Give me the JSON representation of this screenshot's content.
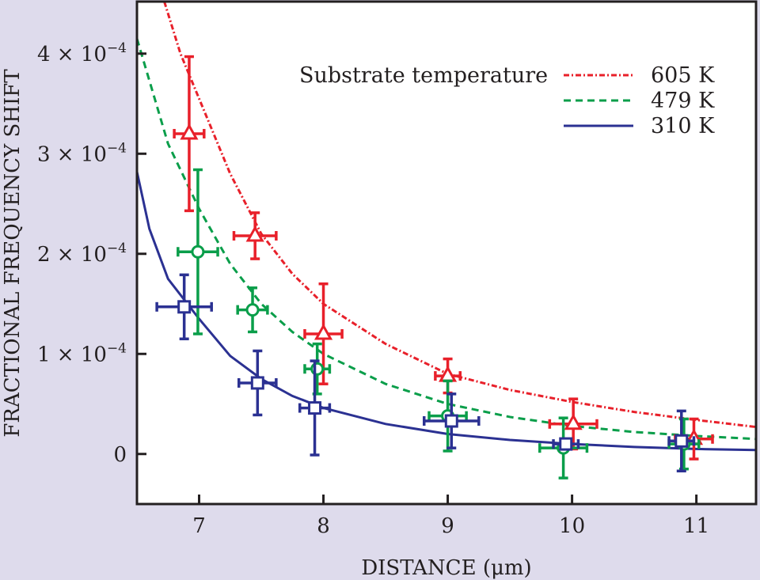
{
  "chart_data": {
    "type": "scatter",
    "title": "",
    "xlabel": "DISTANCE (μm)",
    "ylabel": "FRACTIONAL FREQUENCY SHIFT",
    "xlim": [
      6.5,
      11.48
    ],
    "ylim": [
      -5e-05,
      0.000452
    ],
    "grid": false,
    "x_ticks": [
      7,
      8,
      9,
      10,
      11
    ],
    "x_tick_labels": [
      "7",
      "8",
      "9",
      "10",
      "11"
    ],
    "y_ticks": [
      0,
      0.0001,
      0.0002,
      0.0003,
      0.0004
    ],
    "y_tick_labels": [
      {
        "mantissa": "0",
        "exp": ""
      },
      {
        "mantissa": "1 × 10",
        "exp": "−4"
      },
      {
        "mantissa": "2 × 10",
        "exp": "−4"
      },
      {
        "mantissa": "3 × 10",
        "exp": "−4"
      },
      {
        "mantissa": "4 × 10",
        "exp": "−4"
      }
    ],
    "legend": {
      "title": "Substrate temperature",
      "placement": "top-right"
    },
    "series": [
      {
        "name": "605 K",
        "color": "#e8202a",
        "line_style": "dashdot",
        "marker": "triangle",
        "points": [
          {
            "x": 6.92,
            "y": 0.00032,
            "xerr": 0.12,
            "yerr": 7.7e-05
          },
          {
            "x": 7.45,
            "y": 0.000218,
            "xerr": 0.17,
            "yerr": 2.3e-05
          },
          {
            "x": 8.0,
            "y": 0.00012,
            "xerr": 0.15,
            "yerr": 5e-05
          },
          {
            "x": 9.0,
            "y": 7.8e-05,
            "xerr": 0.1,
            "yerr": 1.7e-05
          },
          {
            "x": 10.01,
            "y": 3e-05,
            "xerr": 0.19,
            "yerr": 2.5e-05
          },
          {
            "x": 10.98,
            "y": 1.5e-05,
            "xerr": 0.15,
            "yerr": 2e-05
          }
        ],
        "curve": [
          [
            6.72,
            0.000452
          ],
          [
            6.85,
            0.0004
          ],
          [
            7.0,
            0.000355
          ],
          [
            7.25,
            0.00028
          ],
          [
            7.5,
            0.00022
          ],
          [
            7.75,
            0.00018
          ],
          [
            8.0,
            0.00015
          ],
          [
            8.5,
            0.00011
          ],
          [
            9.0,
            8e-05
          ],
          [
            9.5,
            6.4e-05
          ],
          [
            10.0,
            5.2e-05
          ],
          [
            10.5,
            4.2e-05
          ],
          [
            11.0,
            3.4e-05
          ],
          [
            11.48,
            2.7e-05
          ]
        ]
      },
      {
        "name": "479 K",
        "color": "#0a9e4a",
        "line_style": "dashed",
        "marker": "circle",
        "points": [
          {
            "x": 6.99,
            "y": 0.000202,
            "xerr": 0.16,
            "yerr": 8.2e-05
          },
          {
            "x": 7.43,
            "y": 0.000144,
            "xerr": 0.12,
            "yerr": 2.2e-05
          },
          {
            "x": 7.95,
            "y": 8.5e-05,
            "xerr": 0.1,
            "yerr": 2.5e-05
          },
          {
            "x": 9.0,
            "y": 3.8e-05,
            "xerr": 0.15,
            "yerr": 3.5e-05
          },
          {
            "x": 9.93,
            "y": 6e-06,
            "xerr": 0.19,
            "yerr": 3e-05
          },
          {
            "x": 10.9,
            "y": 1e-05,
            "xerr": 0.12,
            "yerr": 2.5e-05
          }
        ],
        "curve": [
          [
            6.5,
            0.000415
          ],
          [
            6.75,
            0.00031
          ],
          [
            7.0,
            0.000245
          ],
          [
            7.25,
            0.00019
          ],
          [
            7.5,
            0.00015
          ],
          [
            7.75,
            0.000122
          ],
          [
            8.0,
            0.0001
          ],
          [
            8.5,
            7e-05
          ],
          [
            9.0,
            5e-05
          ],
          [
            9.5,
            3.7e-05
          ],
          [
            10.0,
            2.8e-05
          ],
          [
            10.5,
            2.2e-05
          ],
          [
            11.0,
            1.8e-05
          ],
          [
            11.48,
            1.5e-05
          ]
        ]
      },
      {
        "name": "310 K",
        "color": "#2b3192",
        "line_style": "solid",
        "marker": "square",
        "points": [
          {
            "x": 6.88,
            "y": 0.000147,
            "xerr": 0.22,
            "yerr": 3.2e-05
          },
          {
            "x": 7.47,
            "y": 7.1e-05,
            "xerr": 0.15,
            "yerr": 3.2e-05
          },
          {
            "x": 7.93,
            "y": 4.6e-05,
            "xerr": 0.12,
            "yerr": 4.7e-05
          },
          {
            "x": 9.03,
            "y": 3.3e-05,
            "xerr": 0.22,
            "yerr": 2.7e-05
          },
          {
            "x": 9.95,
            "y": 1e-05,
            "xerr": 0.1,
            "yerr": 5e-06
          },
          {
            "x": 10.88,
            "y": 1.3e-05,
            "xerr": 0.1,
            "yerr": 3e-05
          }
        ],
        "curve": [
          [
            6.5,
            0.000282
          ],
          [
            6.6,
            0.000225
          ],
          [
            6.75,
            0.000175
          ],
          [
            7.0,
            0.000135
          ],
          [
            7.25,
            9.8e-05
          ],
          [
            7.5,
            7.5e-05
          ],
          [
            7.75,
            5.8e-05
          ],
          [
            8.0,
            4.6e-05
          ],
          [
            8.5,
            3e-05
          ],
          [
            9.0,
            2e-05
          ],
          [
            9.5,
            1.4e-05
          ],
          [
            10.0,
            1e-05
          ],
          [
            10.5,
            7e-06
          ],
          [
            11.0,
            5e-06
          ],
          [
            11.48,
            4e-06
          ]
        ]
      }
    ]
  }
}
